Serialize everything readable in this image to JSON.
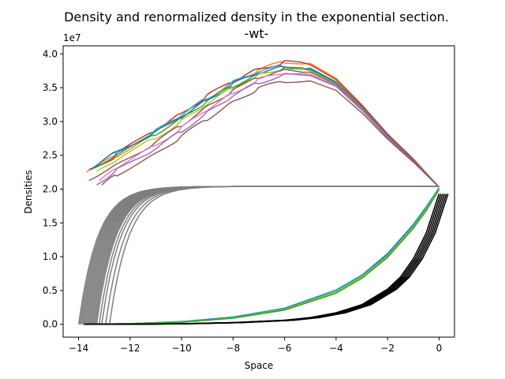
{
  "chart_data": {
    "type": "line",
    "title": "Density and renormalized density in the exponential section.",
    "subtitle": "-wt-",
    "xlabel": "Space",
    "ylabel": "Densities",
    "y_offset_label": "1e7",
    "xlim": [
      -14.6,
      0.6
    ],
    "ylim": [
      -1.9,
      41.2
    ],
    "y_unit_scale": 10000000,
    "x_ticks": [
      -14,
      -12,
      -10,
      -8,
      -6,
      -4,
      -2,
      0
    ],
    "x_tick_labels": [
      "−14",
      "−12",
      "−10",
      "−8",
      "−6",
      "−4",
      "−2",
      "0"
    ],
    "y_ticks": [
      0,
      5,
      10,
      15,
      20,
      25,
      30,
      35,
      40
    ],
    "y_tick_labels": [
      "0.0",
      "0.5",
      "1.0",
      "1.5",
      "2.0",
      "2.5",
      "3.0",
      "3.5",
      "4.0"
    ],
    "grid": false,
    "legend": "none",
    "series_groups": [
      {
        "group": "density-curves",
        "description_visible": false,
        "curves": [
          {
            "color": "#ff7f0e",
            "x": [
              -13.7,
              -12.5,
              -11,
              -10,
              -9,
              -8,
              -7,
              -6,
              -5,
              -4,
              -3,
              -2,
              -1,
              0
            ],
            "values": [
              22.5,
              25,
              28.5,
              30.8,
              33.5,
              35.8,
              37.6,
              38.9,
              38.6,
              36.4,
              32.5,
              28.2,
              24.5,
              20.3
            ]
          },
          {
            "color": "#d62728",
            "x": [
              -13.6,
              -12.5,
              -11,
              -10,
              -9,
              -8,
              -7,
              -6,
              -5,
              -4,
              -3,
              -2,
              -1,
              0
            ],
            "values": [
              22.8,
              25.2,
              28.8,
              31.2,
              33.8,
              36,
              37.8,
              38.8,
              38.4,
              36.2,
              32.4,
              28.1,
              24.4,
              20.3
            ]
          },
          {
            "color": "#17becf",
            "x": [
              -13.5,
              -12.5,
              -11,
              -10,
              -9,
              -8,
              -7,
              -6,
              -5,
              -4,
              -3,
              -2,
              -1,
              0
            ],
            "values": [
              23,
              25.5,
              28.6,
              31,
              33.5,
              35.8,
              37.4,
              38.2,
              37.9,
              35.9,
              32.2,
              28,
              24.3,
              20.3
            ]
          },
          {
            "color": "#2ca02c",
            "x": [
              -13.4,
              -12.5,
              -11,
              -10,
              -9,
              -8,
              -7,
              -6,
              -5,
              -4,
              -3,
              -2,
              -1,
              0
            ],
            "values": [
              22.9,
              25,
              28.2,
              30.5,
              33,
              35.3,
              37,
              37.9,
              37.6,
              35.7,
              32.1,
              27.9,
              24.2,
              20.3
            ]
          },
          {
            "color": "#1f77b4",
            "x": [
              -13.5,
              -12.5,
              -11,
              -10,
              -9,
              -8,
              -7,
              -6,
              -5,
              -4,
              -3,
              -2,
              -1,
              0
            ],
            "values": [
              23.2,
              25.6,
              28.4,
              30.7,
              33.2,
              35.5,
              37.2,
              38.1,
              37.8,
              35.8,
              32.2,
              28,
              24.3,
              20.3
            ]
          },
          {
            "color": "#bcbd22",
            "x": [
              -13.3,
              -12.5,
              -11,
              -10,
              -9,
              -8,
              -7,
              -6,
              -5,
              -4,
              -3,
              -2,
              -1,
              0
            ],
            "values": [
              22.4,
              24.4,
              27.6,
              30,
              32.6,
              35,
              36.8,
              37.8,
              37.5,
              35.6,
              32,
              27.8,
              24.2,
              20.3
            ]
          },
          {
            "color": "#8c564b",
            "x": [
              -13.6,
              -12.5,
              -11,
              -10,
              -9,
              -8,
              -7,
              -6,
              -5,
              -4,
              -3,
              -2,
              -1,
              0
            ],
            "values": [
              21.5,
              23.6,
              26.9,
              29.5,
              32.2,
              34.6,
              36.6,
              37.6,
              37.3,
              35.5,
              31.9,
              27.8,
              24.2,
              20.3
            ]
          },
          {
            "color": "#e377c2",
            "x": [
              -13.2,
              -12.5,
              -11,
              -10,
              -9,
              -8,
              -7,
              -6,
              -5,
              -4,
              -3,
              -2,
              -1,
              0
            ],
            "values": [
              21,
              23.3,
              26.5,
              29,
              31.8,
              34.2,
              36.2,
              37.2,
              37,
              35.3,
              31.8,
              27.7,
              24.1,
              20.3
            ]
          },
          {
            "color": "#9467bd",
            "x": [
              -13.3,
              -12.5,
              -11,
              -10,
              -9,
              -8,
              -7,
              -6,
              -5,
              -4,
              -3,
              -2,
              -1,
              0
            ],
            "values": [
              20.8,
              22.8,
              26,
              28.6,
              31.3,
              33.8,
              35.8,
              36.9,
              36.8,
              35.2,
              31.7,
              27.6,
              24.1,
              20.3
            ]
          },
          {
            "color": "#8c564b",
            "x": [
              -13.1,
              -12.5,
              -11,
              -10,
              -9,
              -8,
              -7,
              -6,
              -5,
              -4,
              -3,
              -2,
              -1,
              0
            ],
            "values": [
              20.5,
              22.2,
              25.2,
              27.8,
              30.4,
              32.9,
              34.9,
              36,
              36,
              34.6,
              31.3,
              27.4,
              24,
              20.3
            ]
          }
        ]
      },
      {
        "group": "renormalized-curves",
        "color": "#7f7f7f",
        "plateau": 20.4,
        "start_x": [
          -14,
          -13.95,
          -13.9,
          -13.85,
          -13.8,
          -13.75,
          -13.7,
          -13.65,
          -13.6,
          -13.55,
          -13.5,
          -13.45,
          -13.4,
          -13.35,
          -13.3,
          -13.2,
          -13.1,
          -12.95,
          -12.8
        ]
      },
      {
        "group": "rising-curves",
        "curves": [
          {
            "color": "#17becf",
            "x": [
              -13.5,
              -12,
              -10,
              -8,
              -6,
              -4,
              -3,
              -2,
              -1,
              -0.5,
              0
            ],
            "values": [
              0,
              0.1,
              0.4,
              1.1,
              2.4,
              5.1,
              7.3,
              10.5,
              14.8,
              17.4,
              20.2
            ]
          },
          {
            "color": "#1f77b4",
            "x": [
              -13.5,
              -12,
              -10,
              -8,
              -6,
              -4,
              -3,
              -2,
              -1,
              -0.5,
              0
            ],
            "values": [
              0,
              0.1,
              0.4,
              1,
              2.3,
              4.9,
              7.1,
              10.3,
              14.6,
              17.2,
              20.1
            ]
          },
          {
            "color": "#bcbd22",
            "x": [
              -13.5,
              -12,
              -10,
              -8,
              -6,
              -4,
              -3,
              -2,
              -1,
              -0.5,
              0
            ],
            "values": [
              0,
              0.1,
              0.35,
              0.95,
              2.2,
              4.8,
              7,
              10.1,
              14.4,
              17,
              20
            ]
          },
          {
            "color": "#2ca02c",
            "x": [
              -13.5,
              -12,
              -10,
              -8,
              -6,
              -4,
              -3,
              -2,
              -1,
              -0.5,
              0
            ],
            "values": [
              0,
              0.08,
              0.3,
              0.9,
              2.1,
              4.6,
              6.8,
              9.9,
              14.2,
              16.8,
              19.9
            ]
          }
        ]
      },
      {
        "group": "exponential-curves",
        "color": "#000000",
        "x": [
          -13.8,
          -12,
          -10,
          -8,
          -6,
          -5,
          -4,
          -3,
          -2,
          -1.5,
          -1,
          -0.5,
          0
        ],
        "values": [
          0,
          0.02,
          0.08,
          0.25,
          0.6,
          1.0,
          1.7,
          2.9,
          5.2,
          7.0,
          9.7,
          13.5,
          19.3
        ],
        "band_width_x": 0.35
      }
    ]
  }
}
